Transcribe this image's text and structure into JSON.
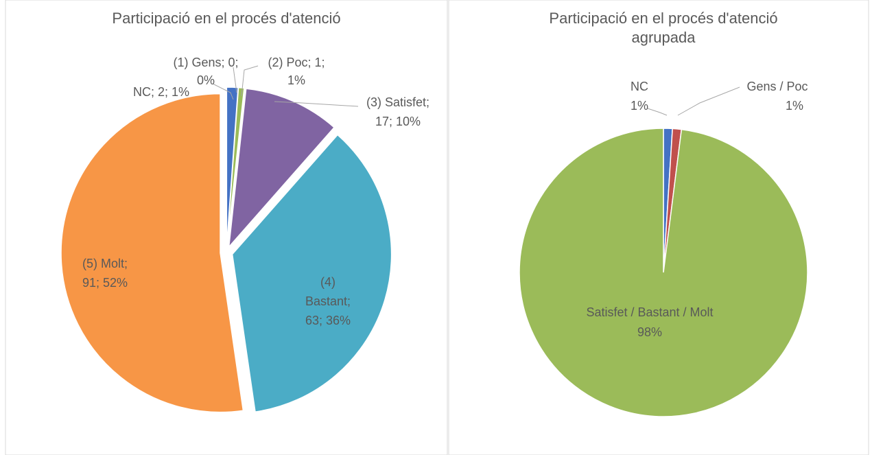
{
  "chart_data": [
    {
      "type": "pie",
      "title": "Participació en el procés d'atenció",
      "categories": [
        "NC",
        "(1) Gens",
        "(2) Poc",
        "(3) Satisfet",
        "(4) Bastant",
        "(5) Molt"
      ],
      "values": [
        2,
        0,
        1,
        17,
        63,
        91
      ],
      "value_labels": [
        [
          "NC; 2; 1%"
        ],
        [
          "(1) Gens; 0;",
          "0%"
        ],
        [
          "(2) Poc; 1;",
          "1%"
        ],
        [
          "(3) Satisfet;",
          "17; 10%"
        ],
        [
          "(4)",
          "Bastant;",
          "63; 36%"
        ],
        [
          "(5) Molt;",
          "91; 52%"
        ]
      ],
      "colors": [
        "#4472c4",
        "#c0504d",
        "#9bbb59",
        "#8064a2",
        "#4bacc6",
        "#f79646"
      ]
    },
    {
      "type": "pie",
      "title": [
        "Participació en el procés d'atenció",
        "agrupada"
      ],
      "categories": [
        "NC",
        "Gens / Poc",
        "Satisfet / Bastant / Molt"
      ],
      "values": [
        1,
        1,
        98
      ],
      "value_labels": [
        "1%",
        "1%",
        "98%"
      ],
      "colors": [
        "#4472c4",
        "#c0504d",
        "#9bbb59"
      ]
    }
  ]
}
